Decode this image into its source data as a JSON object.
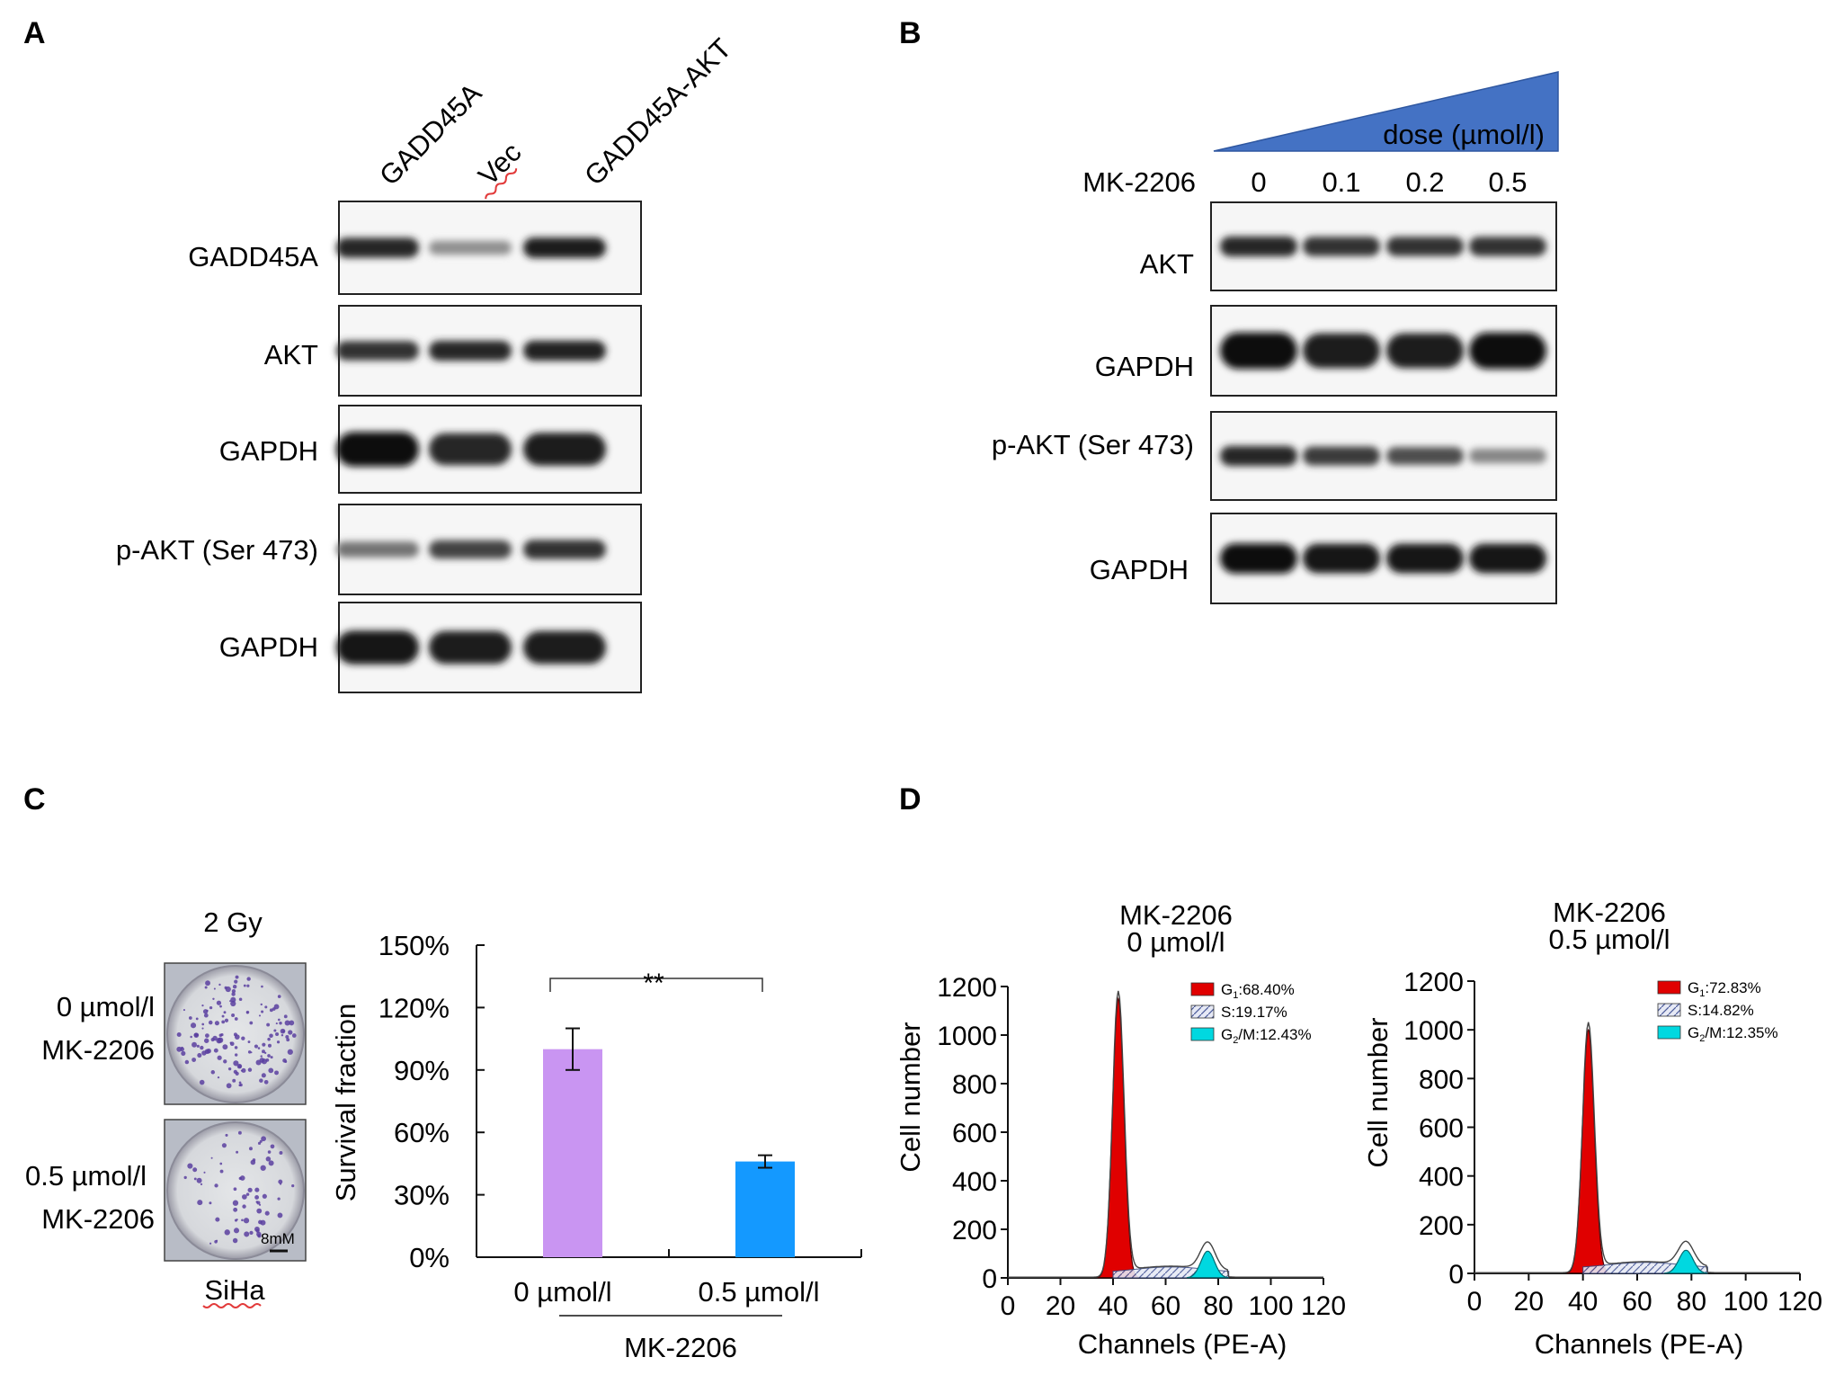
{
  "panel_a": {
    "letter": "A",
    "lanes": [
      "GADD45A",
      "Vec",
      "GADD45A-AKT"
    ],
    "blots": [
      {
        "label": "GADD45A",
        "bands": [
          0.85,
          0.3,
          0.9
        ]
      },
      {
        "label": "AKT",
        "bands": [
          0.8,
          0.85,
          0.88
        ]
      },
      {
        "label": "GAPDH",
        "bands": [
          1.0,
          0.85,
          0.9
        ]
      },
      {
        "label": "p-AKT (Ser 473)",
        "bands": [
          0.45,
          0.7,
          0.8
        ]
      },
      {
        "label": "GAPDH",
        "bands": [
          0.95,
          0.9,
          0.9
        ]
      }
    ]
  },
  "panel_b": {
    "letter": "B",
    "dose_label": "dose (µmol/l)",
    "drug_label": "MK-2206",
    "doses": [
      "0",
      "0.1",
      "0.2",
      "0.5"
    ],
    "blots": [
      {
        "label": "AKT",
        "bands": [
          0.85,
          0.8,
          0.8,
          0.8
        ]
      },
      {
        "label": "GAPDH",
        "bands": [
          1.0,
          0.9,
          0.9,
          1.0
        ]
      },
      {
        "label": "p-AKT (Ser 473)",
        "bands": [
          0.85,
          0.75,
          0.65,
          0.35
        ]
      },
      {
        "label": "GAPDH",
        "bands": [
          1.0,
          0.95,
          0.95,
          0.95
        ]
      }
    ]
  },
  "panel_c": {
    "letter": "C",
    "dish_title": "2 Gy",
    "dish_labels": [
      [
        "0 µmol/l",
        "MK-2206"
      ],
      [
        "0.5 µmol/l",
        "MK-2206"
      ]
    ],
    "scale_bar": "8mM",
    "cell_line": "SiHa",
    "significance": "**",
    "group_label": "MK-2206"
  },
  "panel_d": {
    "letter": "D",
    "plots": [
      {
        "title": [
          "MK-2206",
          "0 µmol/l"
        ],
        "legend": [
          {
            "phase": "G",
            "sub": "1",
            "value": ":68.40%",
            "color": "#e00000"
          },
          {
            "phase": "S",
            "sub": "",
            "value": ":19.17%",
            "color": "#3355aa"
          },
          {
            "phase": "G",
            "sub": "2",
            "value": "/M:12.43%",
            "color": "#00d8e0"
          }
        ]
      },
      {
        "title": [
          "MK-2206",
          "0.5 µmol/l"
        ],
        "legend": [
          {
            "phase": "G",
            "sub": "1",
            "value": ":72.83%",
            "color": "#e00000"
          },
          {
            "phase": "S",
            "sub": "",
            "value": ":14.82%",
            "color": "#3355aa"
          },
          {
            "phase": "G",
            "sub": "2",
            "value": "/M:12.35%",
            "color": "#00d8e0"
          }
        ]
      }
    ]
  },
  "chart_data": [
    {
      "type": "bar",
      "categories": [
        "0 µmol/l",
        "0.5 µmol/l"
      ],
      "values": [
        100,
        46
      ],
      "errors": [
        10,
        3
      ],
      "colors": [
        "#c995f2",
        "#1499ff"
      ],
      "ylabel": "Survival fraction",
      "xlabel": "MK-2206",
      "ylim": [
        0,
        150
      ],
      "yticks": [
        "0%",
        "30%",
        "60%",
        "90%",
        "120%",
        "150%"
      ],
      "ytick_values": [
        0,
        30,
        60,
        90,
        120,
        150
      ]
    },
    {
      "type": "area",
      "title": "MK-2206 0 µmol/l",
      "xlabel": "Channels (PE-A)",
      "ylabel": "Cell number",
      "xlim": [
        0,
        120
      ],
      "ylim": [
        0,
        1200
      ],
      "xticks": [
        "0",
        "20",
        "40",
        "60",
        "80",
        "100",
        "120"
      ],
      "yticks": [
        "0",
        "200",
        "400",
        "600",
        "800",
        "1000",
        "1200"
      ],
      "peaks": {
        "G1": {
          "center": 42,
          "height": 1150
        },
        "G2M": {
          "center": 76,
          "height": 110
        }
      },
      "series": [
        {
          "name": "G1",
          "percent": 68.4
        },
        {
          "name": "S",
          "percent": 19.17
        },
        {
          "name": "G2/M",
          "percent": 12.43
        }
      ]
    },
    {
      "type": "area",
      "title": "MK-2206 0.5 µmol/l",
      "xlabel": "Channels (PE-A)",
      "ylabel": "Cell number",
      "xlim": [
        0,
        120
      ],
      "ylim": [
        0,
        1200
      ],
      "xticks": [
        "0",
        "20",
        "40",
        "60",
        "80",
        "100",
        "120"
      ],
      "yticks": [
        "0",
        "200",
        "400",
        "600",
        "800",
        "1000",
        "1200"
      ],
      "peaks": {
        "G1": {
          "center": 42,
          "height": 1000
        },
        "G2M": {
          "center": 78,
          "height": 95
        }
      },
      "series": [
        {
          "name": "G1",
          "percent": 72.83
        },
        {
          "name": "S",
          "percent": 14.82
        },
        {
          "name": "G2/M",
          "percent": 12.35
        }
      ]
    }
  ]
}
